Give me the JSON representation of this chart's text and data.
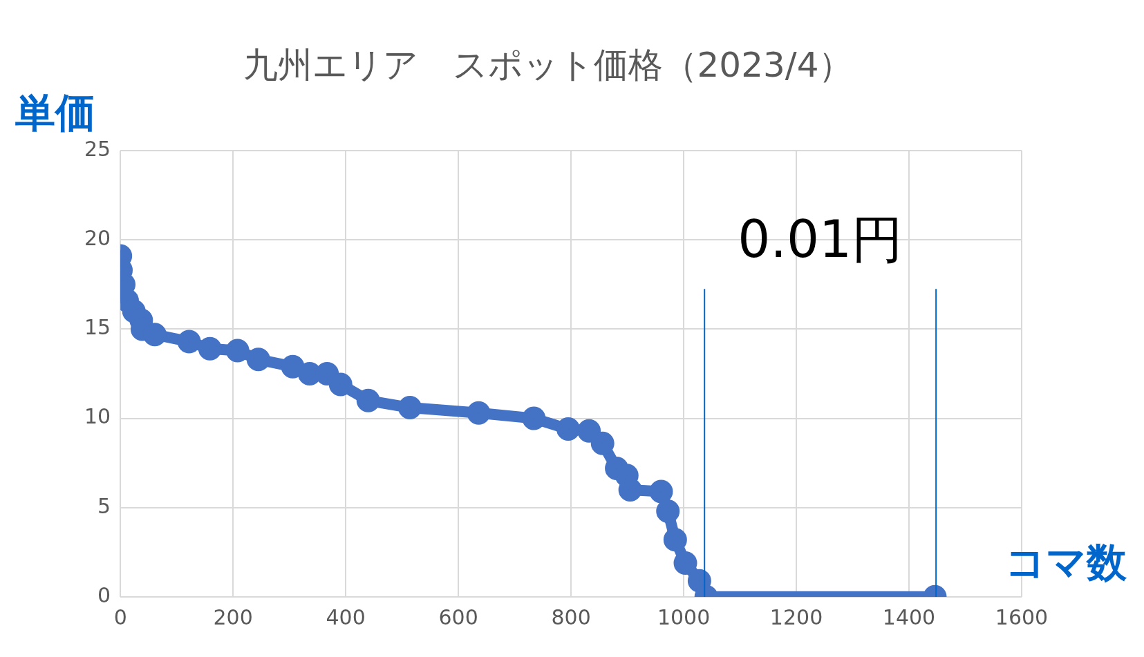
{
  "chart_data": {
    "type": "line",
    "title": "九州エリア　スポット価格（2023/4）",
    "xlabel": "コマ数",
    "ylabel": "単価",
    "series": [
      {
        "color": "#4472c4",
        "x": [
          0,
          1,
          6,
          1,
          12,
          24,
          37,
          39,
          61,
          122,
          159,
          208,
          245,
          306,
          336,
          367,
          391,
          440,
          514,
          636,
          734,
          795,
          832,
          856,
          881,
          899,
          905,
          960,
          972,
          985,
          1003,
          1028,
          1040,
          1446
        ],
        "values": [
          19.1,
          18.3,
          17.5,
          17.1,
          16.6,
          16.0,
          15.5,
          15.0,
          14.7,
          14.3,
          13.9,
          13.8,
          13.3,
          12.9,
          12.5,
          12.5,
          11.9,
          11.0,
          10.6,
          10.3,
          10.0,
          9.4,
          9.3,
          8.6,
          7.2,
          6.8,
          6.0,
          5.9,
          4.8,
          3.2,
          1.9,
          0.9,
          0.01,
          0.01
        ]
      }
    ],
    "marker": "circle",
    "xlim": [
      0,
      1600
    ],
    "xticks": [
      0,
      200,
      400,
      600,
      800,
      1000,
      1200,
      1400,
      1600
    ],
    "ylim": [
      0,
      25
    ],
    "yticks": [
      0,
      5,
      10,
      15,
      20,
      25
    ],
    "grid": true,
    "legend": false,
    "ref_lines": [
      {
        "axis": "x",
        "value": 1037,
        "color": "#0066cc"
      },
      {
        "axis": "x",
        "value": 1448,
        "color": "#0066cc"
      }
    ],
    "annotations": [
      "0.01円"
    ]
  }
}
